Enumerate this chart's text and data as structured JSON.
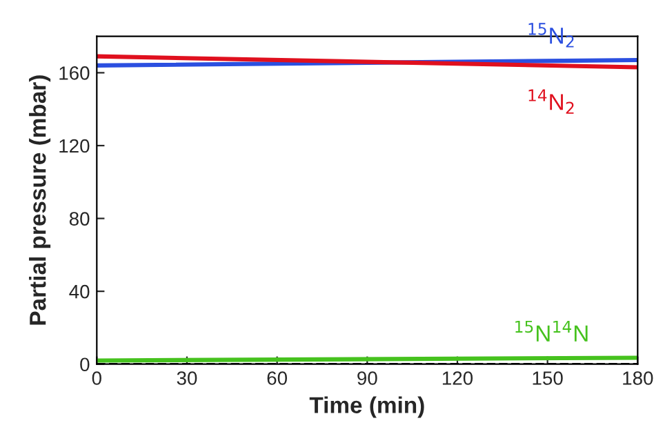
{
  "chart_data": {
    "type": "line",
    "xlabel": "Time (min)",
    "ylabel": "Partial pressure (mbar)",
    "x": [
      0,
      180
    ],
    "series": [
      {
        "name": "$^{15}$N$_{2}$",
        "color": "#2b4fe0",
        "values": [
          164,
          167
        ]
      },
      {
        "name": "$^{14}$N$_{2}$",
        "color": "#e0101e",
        "values": [
          169,
          163
        ]
      },
      {
        "name": "$^{15}$N$^{14}$N",
        "color": "#46c21e",
        "values": [
          2,
          3.5
        ]
      }
    ],
    "ref_lines": [
      {
        "axis": "y",
        "value": 0,
        "color": "#000000",
        "line_style": "dashed"
      }
    ],
    "xlim": [
      0,
      180
    ],
    "ylim": [
      0,
      180
    ],
    "xticks": [
      0,
      30,
      60,
      90,
      120,
      150,
      180
    ],
    "yticks": [
      0,
      40,
      80,
      120,
      160
    ],
    "grid": false,
    "legend": false,
    "marker": "none",
    "line_style": "solid"
  }
}
